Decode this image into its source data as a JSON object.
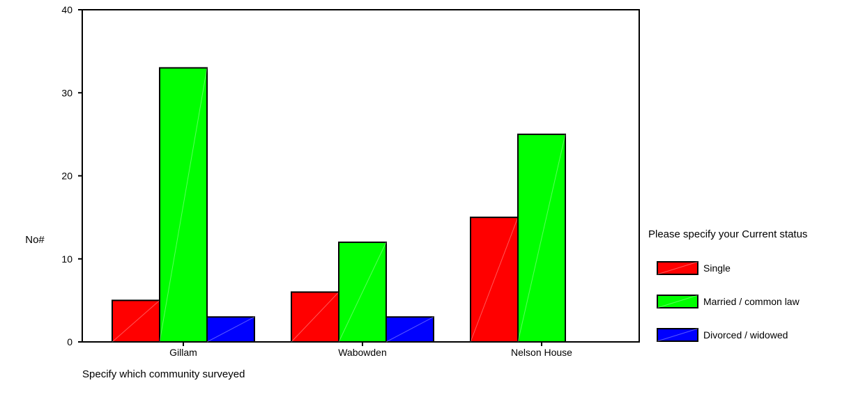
{
  "chart_data": {
    "type": "bar",
    "title": "",
    "xlabel": "Specify which community surveyed",
    "ylabel": "No#",
    "ylim": [
      0,
      40
    ],
    "yticks": [
      0,
      10,
      20,
      30,
      40
    ],
    "grid": false,
    "categories": [
      "Gillam",
      "Wabowden",
      "Nelson House"
    ],
    "series": [
      {
        "name": "Single",
        "color": "#ff0000",
        "values": [
          5,
          6,
          15
        ]
      },
      {
        "name": "Married / common law",
        "color": "#00ff00",
        "values": [
          33,
          12,
          25
        ]
      },
      {
        "name": "Divorced / widowed",
        "color": "#0000ff",
        "values": [
          3,
          3,
          null
        ]
      }
    ],
    "legend": {
      "title": "Please specify your Current status",
      "placement": "right"
    }
  }
}
